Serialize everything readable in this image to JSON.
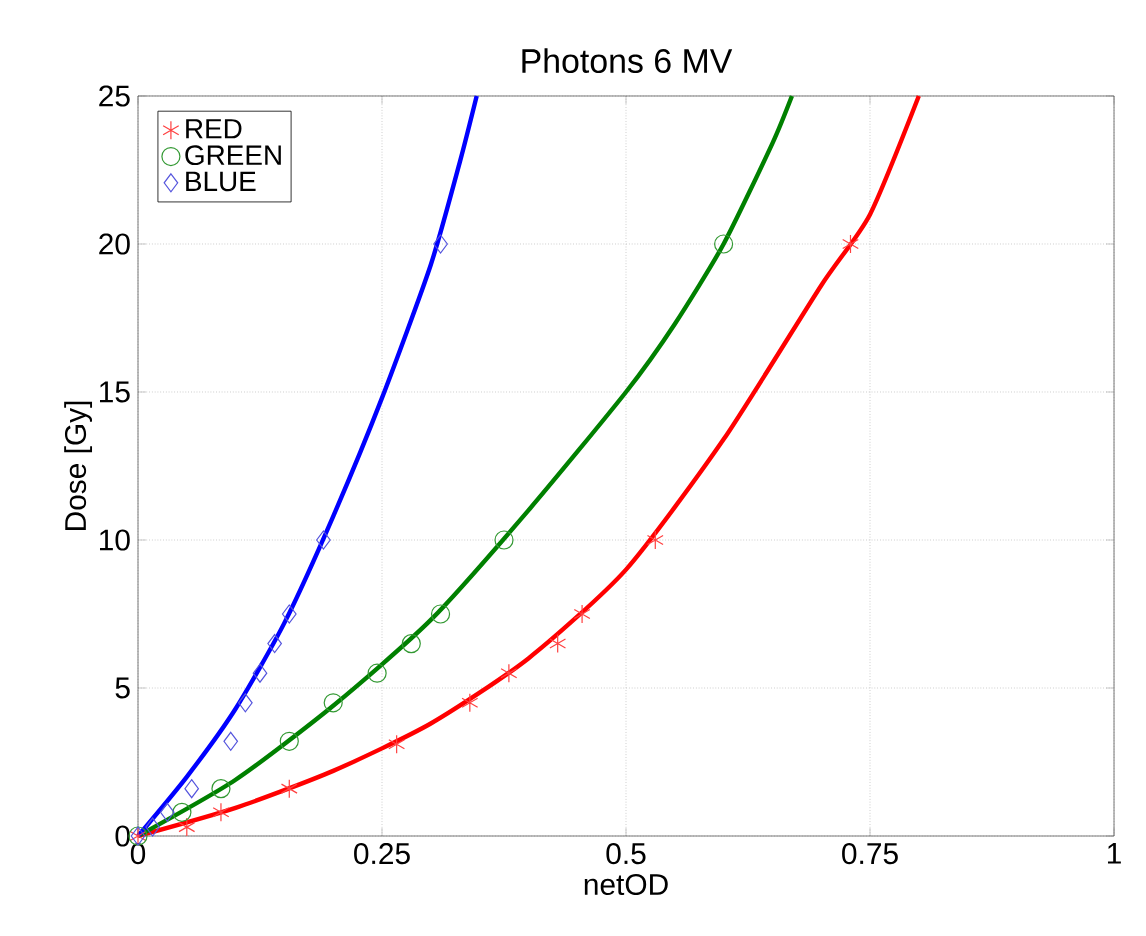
{
  "chart_data": {
    "type": "scatter",
    "title": "Photons 6 MV",
    "xlabel": "netOD",
    "ylabel": "Dose [Gy]",
    "xlim": [
      0,
      1
    ],
    "ylim": [
      0,
      25
    ],
    "xticks": [
      0,
      0.25,
      0.5,
      0.75,
      1
    ],
    "yticks": [
      0,
      5,
      10,
      15,
      20,
      25
    ],
    "grid": true,
    "legend": "top left",
    "series": [
      {
        "type": "line",
        "color": "#ff0000",
        "line_style": "solid",
        "marker": "none",
        "x": [
          0,
          0.1,
          0.2,
          0.3,
          0.4,
          0.5,
          0.6,
          0.7,
          0.75,
          0.8
        ],
        "values": [
          0,
          0.95,
          2.2,
          3.8,
          6.0,
          9.0,
          13.4,
          18.6,
          21.0,
          25
        ]
      },
      {
        "type": "line",
        "color": "#008000",
        "line_style": "solid",
        "marker": "none",
        "x": [
          0,
          0.1,
          0.2,
          0.3,
          0.4,
          0.5,
          0.55,
          0.6,
          0.65,
          0.67
        ],
        "values": [
          0,
          1.9,
          4.4,
          7.3,
          11.0,
          15.0,
          17.3,
          20.0,
          23.4,
          25
        ]
      },
      {
        "type": "line",
        "color": "#0000ff",
        "line_style": "solid",
        "marker": "none",
        "x": [
          0,
          0.05,
          0.1,
          0.15,
          0.2,
          0.25,
          0.3,
          0.33,
          0.347
        ],
        "values": [
          0,
          2.0,
          4.3,
          7.2,
          10.8,
          14.8,
          19.3,
          22.8,
          25
        ]
      },
      {
        "type": "scatter",
        "name": "RED",
        "color": "#ff4040",
        "marker": "cross",
        "x": [
          0,
          0.05,
          0.085,
          0.155,
          0.265,
          0.34,
          0.38,
          0.43,
          0.455,
          0.53,
          0.73
        ],
        "values": [
          0,
          0.3,
          0.8,
          1.6,
          3.1,
          4.5,
          5.5,
          6.5,
          7.5,
          10,
          20
        ]
      },
      {
        "type": "scatter",
        "name": "GREEN",
        "color": "#339933",
        "marker": "circle",
        "x": [
          0,
          0.045,
          0.085,
          0.155,
          0.2,
          0.245,
          0.28,
          0.31,
          0.375,
          0.6
        ],
        "values": [
          0,
          0.8,
          1.6,
          3.2,
          4.5,
          5.5,
          6.5,
          7.5,
          10,
          20
        ]
      },
      {
        "type": "scatter",
        "name": "BLUE",
        "color": "#5555dd",
        "marker": "diamond",
        "x": [
          0,
          0.015,
          0.03,
          0.055,
          0.095,
          0.11,
          0.125,
          0.14,
          0.155,
          0.19,
          0.31
        ],
        "values": [
          0,
          0.3,
          0.8,
          1.6,
          3.2,
          4.5,
          5.5,
          6.5,
          7.5,
          10,
          20
        ]
      }
    ]
  }
}
